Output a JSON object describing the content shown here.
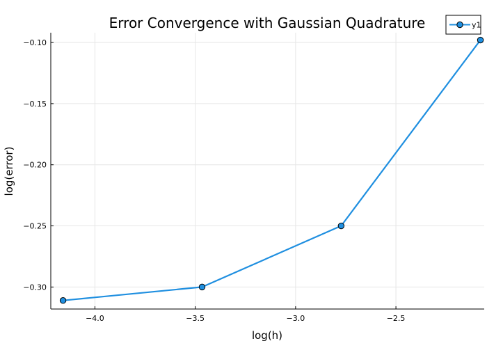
{
  "chart_data": {
    "type": "line",
    "title": "Error Convergence with Gaussian Quadrature",
    "xlabel": "log(h)",
    "ylabel": "log(error)",
    "xlim": [
      -4.22,
      -2.06
    ],
    "ylim": [
      -0.318,
      -0.092
    ],
    "xticks": [
      -4.0,
      -3.5,
      -3.0,
      -2.5
    ],
    "xtick_labels": [
      "−4.0",
      "−3.5",
      "−3.0",
      "−2.5"
    ],
    "yticks": [
      -0.3,
      -0.25,
      -0.2,
      -0.15,
      -0.1
    ],
    "ytick_labels": [
      "−0.30",
      "−0.25",
      "−0.20",
      "−0.15",
      "−0.10"
    ],
    "grid": true,
    "legend_position": "top-right",
    "series": [
      {
        "name": "y1",
        "color": "#1f8fe0",
        "marker": "circle",
        "x": [
          -4.159,
          -3.466,
          -2.773,
          -2.079
        ],
        "y": [
          -0.311,
          -0.3,
          -0.25,
          -0.098
        ]
      }
    ]
  }
}
